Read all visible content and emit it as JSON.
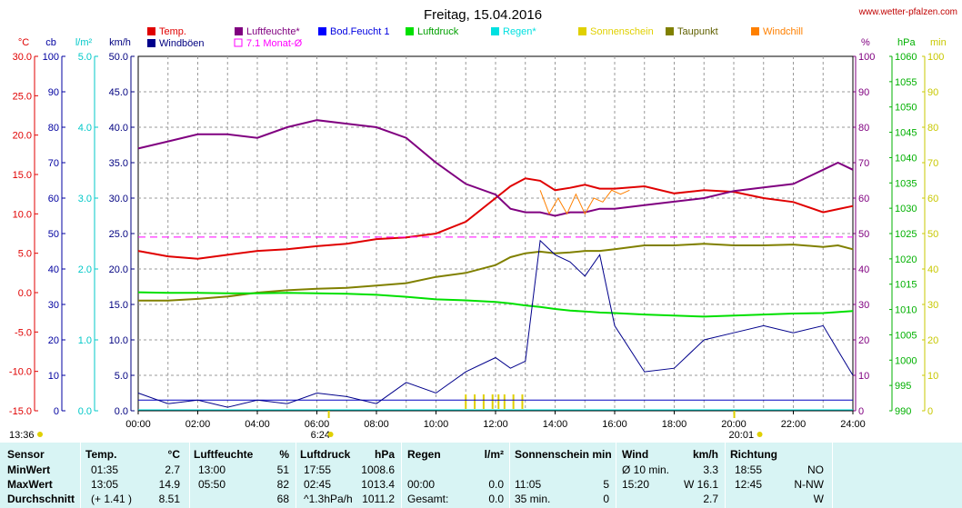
{
  "chart_data": {
    "type": "line",
    "title": "Freitag, 15.04.2016",
    "site": "www.wetter-pfalzen.com",
    "colors": {
      "temp": "#e00000",
      "windboeen": "#00008b",
      "luftfeuchte": "#800080",
      "monat": "#ff00ff",
      "bodfeucht": "#0000ff",
      "luftdruck": "#00e000",
      "regen": "#00e0e0",
      "sonnenschein": "#e0d000",
      "taupunkt": "#808000",
      "windchill": "#ff8000"
    },
    "legend": [
      {
        "key": "temp",
        "label": "Temp."
      },
      {
        "key": "luftfeuchte",
        "label": "Luftfeuchte*"
      },
      {
        "key": "bodfeucht",
        "label": "Bod.Feucht 1"
      },
      {
        "key": "luftdruck",
        "label": "Luftdruck"
      },
      {
        "key": "regen",
        "label": "Regen*"
      },
      {
        "key": "sonnenschein",
        "label": "Sonnenschein"
      },
      {
        "key": "taupunkt",
        "label": "Taupunkt"
      },
      {
        "key": "windchill",
        "label": "Windchill"
      },
      {
        "key": "windboeen",
        "label": "Windböen"
      },
      {
        "key": "monat",
        "label": "7.1 Monat-Ø"
      }
    ],
    "axes": {
      "left": [
        {
          "unit": "°C",
          "color": "#e00000",
          "ticks": [
            "30.0",
            "25.0",
            "20.0",
            "15.0",
            "10.0",
            "5.0",
            "0.0",
            "-5.0",
            "-10.0",
            "-15.0"
          ]
        },
        {
          "unit": "cb",
          "color": "#0000a0",
          "ticks": [
            "100",
            "90",
            "80",
            "70",
            "60",
            "50",
            "40",
            "30",
            "20",
            "10",
            "0"
          ]
        },
        {
          "unit": "l/m²",
          "color": "#00c8c8",
          "ticks": [
            "5.0",
            "4.0",
            "3.0",
            "2.0",
            "1.0",
            "0.0"
          ]
        },
        {
          "unit": "km/h",
          "color": "#000080",
          "ticks": [
            "50.0",
            "45.0",
            "40.0",
            "35.0",
            "30.0",
            "25.0",
            "20.0",
            "15.0",
            "10.0",
            "5.0",
            "0.0"
          ]
        }
      ],
      "right": [
        {
          "unit": "%",
          "color": "#800080",
          "ticks": [
            "100",
            "90",
            "80",
            "70",
            "60",
            "50",
            "40",
            "30",
            "20",
            "10",
            "0"
          ]
        },
        {
          "unit": "hPa",
          "color": "#00b000",
          "ticks": [
            "1060",
            "1055",
            "1050",
            "1045",
            "1040",
            "1035",
            "1030",
            "1025",
            "1020",
            "1015",
            "1010",
            "1005",
            "1000",
            "995",
            "990"
          ]
        },
        {
          "unit": "min",
          "color": "#c8c800",
          "ticks": [
            "100",
            "90",
            "80",
            "70",
            "60",
            "50",
            "40",
            "30",
            "20",
            "10",
            "0"
          ]
        }
      ]
    },
    "x_ticks": [
      "00:00",
      "02:00",
      "04:00",
      "06:00",
      "08:00",
      "10:00",
      "12:00",
      "14:00",
      "16:00",
      "18:00",
      "20:00",
      "22:00",
      "24:00"
    ],
    "markers": {
      "sunrise": "6:24",
      "sunset": "20:01",
      "left": "13:36"
    },
    "x": [
      0,
      1,
      2,
      3,
      4,
      5,
      6,
      7,
      8,
      9,
      10,
      11,
      12,
      12.5,
      13,
      13.5,
      14,
      14.5,
      15,
      15.5,
      16,
      17,
      18,
      19,
      20,
      21,
      22,
      23,
      23.5,
      24
    ],
    "series": [
      {
        "key": "temp",
        "axis": "°C",
        "values": [
          5.3,
          4.6,
          4.3,
          4.8,
          5.3,
          5.5,
          5.9,
          6.2,
          6.8,
          7.0,
          7.5,
          9.0,
          12.0,
          13.5,
          14.5,
          14.2,
          13.0,
          13.3,
          13.7,
          13.2,
          13.2,
          13.5,
          12.6,
          13.0,
          12.8,
          12.0,
          11.5,
          10.2,
          10.6,
          11.0
        ]
      },
      {
        "key": "luftfeuchte",
        "axis": "%",
        "values": [
          74,
          76,
          78,
          78,
          77,
          80,
          82,
          81,
          80,
          77,
          70,
          64,
          61,
          57,
          56,
          56,
          55,
          56,
          56,
          57,
          57,
          58,
          59,
          60,
          62,
          63,
          64,
          68,
          70,
          68
        ]
      },
      {
        "key": "taupunkt",
        "axis": "°C",
        "values": [
          -1.0,
          -1.0,
          -0.8,
          -0.5,
          0.0,
          0.3,
          0.5,
          0.6,
          0.9,
          1.2,
          2.0,
          2.5,
          3.5,
          4.5,
          5.0,
          5.2,
          5.0,
          5.1,
          5.3,
          5.3,
          5.5,
          6.0,
          6.0,
          6.2,
          6.0,
          6.0,
          6.1,
          5.8,
          6.0,
          5.5
        ]
      },
      {
        "key": "luftdruck",
        "axis": "hPa",
        "values": [
          1013.4,
          1013.3,
          1013.3,
          1013.2,
          1013.2,
          1013.3,
          1013.2,
          1013.1,
          1012.9,
          1012.5,
          1012.0,
          1011.8,
          1011.5,
          1011.2,
          1010.8,
          1010.5,
          1010.1,
          1009.8,
          1009.6,
          1009.4,
          1009.3,
          1009.0,
          1008.8,
          1008.6,
          1008.8,
          1009.0,
          1009.2,
          1009.3,
          1009.5,
          1009.7
        ]
      },
      {
        "key": "windboeen",
        "axis": "km/h",
        "values": [
          2.5,
          1.0,
          1.5,
          0.5,
          1.5,
          1.0,
          2.5,
          2.0,
          1.0,
          4.0,
          2.5,
          5.5,
          7.5,
          6.0,
          7.0,
          24.0,
          22.0,
          21.0,
          19.0,
          22.0,
          12.0,
          5.5,
          6.0,
          10.0,
          11.0,
          12.0,
          11.0,
          12.0,
          8.5,
          5.0
        ]
      },
      {
        "key": "windchill",
        "axis": "°C",
        "x": [
          13.5,
          13.8,
          14.1,
          14.4,
          14.7,
          15.0,
          15.3,
          15.6,
          15.9,
          16.2,
          16.5
        ],
        "values": [
          13.0,
          10.0,
          12.0,
          10.0,
          12.5,
          10.0,
          12.0,
          11.5,
          13.0,
          12.5,
          13.0
        ]
      },
      {
        "key": "monat",
        "axis": "%",
        "values": [
          49,
          49,
          49,
          49,
          49,
          49,
          49,
          49,
          49,
          49,
          49,
          49,
          49,
          49,
          49,
          49,
          49,
          49,
          49,
          49,
          49,
          49,
          49,
          49,
          49,
          49,
          49,
          49,
          49,
          49
        ]
      }
    ],
    "sunshine_hours": [
      11.0,
      11.3,
      11.6,
      11.9,
      12.1,
      12.3,
      12.6,
      12.9
    ]
  },
  "table": {
    "headers": [
      "Sensor",
      "Temp.",
      "°C",
      "Luftfeuchte",
      "%",
      "Luftdruck",
      "hPa",
      "Regen",
      "l/m²",
      "Sonnenschein min",
      "Wind",
      "km/h",
      "Richtung"
    ],
    "rows": [
      {
        "label": "MinWert",
        "temp_t": "01:35",
        "temp_v": "2.7",
        "hum_t": "13:00",
        "hum_v": "51",
        "pres_t": "17:55",
        "pres_v": "1008.6",
        "rain_t": "",
        "rain_v": "",
        "sun_t": "",
        "sun_v": "",
        "wind_t": "Ø 10 min.",
        "wind_v": "3.3",
        "dir_t": "18:55",
        "dir_v": "NO"
      },
      {
        "label": "MaxWert",
        "temp_t": "13:05",
        "temp_v": "14.9",
        "hum_t": "05:50",
        "hum_v": "82",
        "pres_t": "02:45",
        "pres_v": "1013.4",
        "rain_t": "00:00",
        "rain_v": "0.0",
        "sun_t": "11:05",
        "sun_v": "5",
        "wind_t": "15:20",
        "wind_v": "W 16.1",
        "dir_t": "12:45",
        "dir_v": "N-NW"
      },
      {
        "label": "Durchschnitt",
        "temp_t": "(+ 1.41 )",
        "temp_v": "8.51",
        "hum_t": "",
        "hum_v": "68",
        "pres_t": "^1.3hPa/h",
        "pres_v": "1011.2",
        "rain_t": "Gesamt:",
        "rain_v": "0.0",
        "sun_t": "35 min.",
        "sun_v": "0",
        "wind_t": "",
        "wind_v": "2.7",
        "dir_t": "",
        "dir_v": "W"
      }
    ]
  }
}
